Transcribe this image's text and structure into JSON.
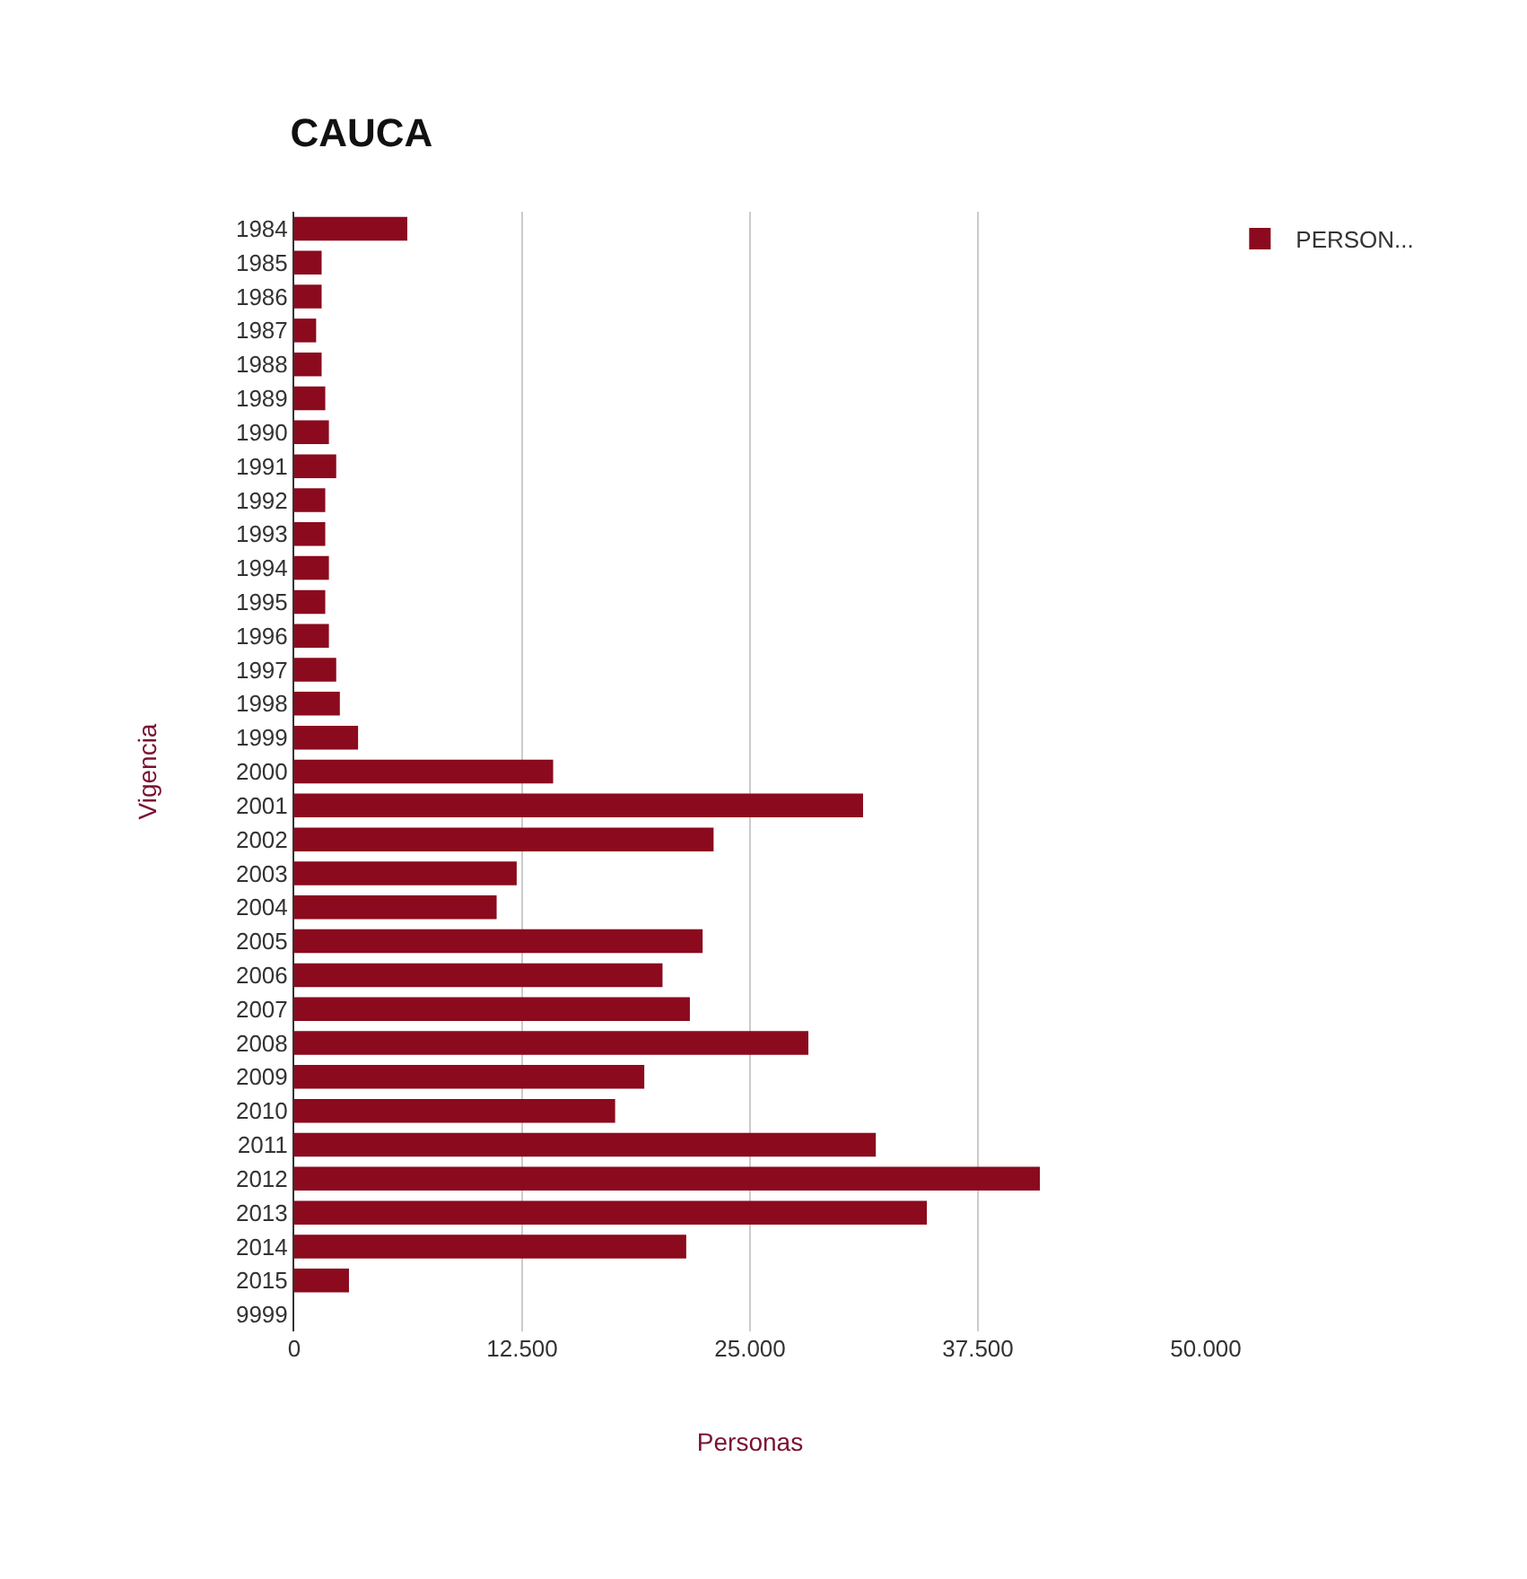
{
  "chart_data": {
    "type": "bar",
    "orientation": "horizontal",
    "title": "CAUCA",
    "xlabel": "Personas",
    "ylabel": "Vigencia",
    "categories": [
      "1984",
      "1985",
      "1986",
      "1987",
      "1988",
      "1989",
      "1990",
      "1991",
      "1992",
      "1993",
      "1994",
      "1995",
      "1996",
      "1997",
      "1998",
      "1999",
      "2000",
      "2001",
      "2002",
      "2003",
      "2004",
      "2005",
      "2006",
      "2007",
      "2008",
      "2009",
      "2010",
      "2011",
      "2012",
      "2013",
      "2014",
      "2015",
      "9999"
    ],
    "series": [
      {
        "name": "PERSON...",
        "color": "#8b0a1e",
        "values": [
          6200,
          1500,
          1500,
          1200,
          1500,
          1700,
          1900,
          2300,
          1700,
          1700,
          1900,
          1700,
          1900,
          2300,
          2500,
          3500,
          14200,
          31200,
          23000,
          12200,
          11100,
          22400,
          20200,
          21700,
          28200,
          19200,
          17600,
          31900,
          40900,
          34700,
          21500,
          3000,
          null
        ]
      }
    ],
    "xlim": [
      0,
      50000
    ],
    "xticks": [
      0,
      {
        "value": 12500,
        "label": "12.500"
      },
      {
        "value": 25000,
        "label": "25.000"
      },
      {
        "value": 37500,
        "label": "37.500"
      },
      {
        "value": 50000,
        "label": "50.000"
      }
    ],
    "grid": "x",
    "legend": "top right"
  }
}
